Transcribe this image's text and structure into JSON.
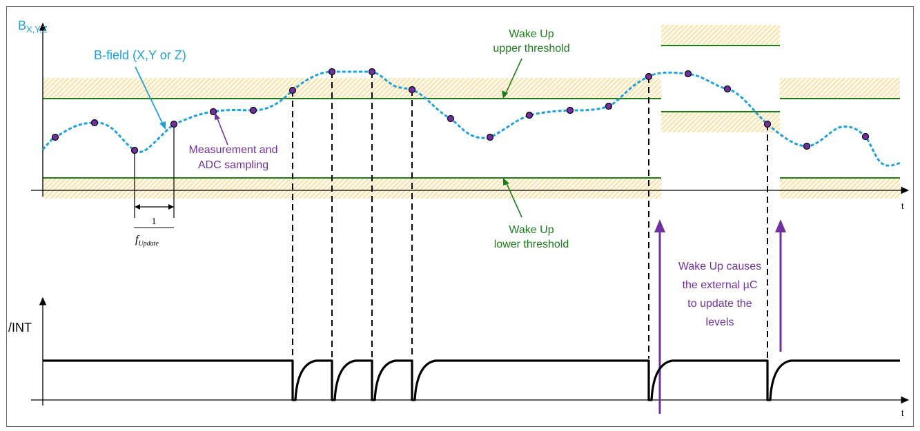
{
  "top_axis": {
    "y_label_main": "B",
    "y_label_sub": "X,Y,Z",
    "x_label": "t"
  },
  "bottom_axis": {
    "y_label": "/INT",
    "x_label": "t"
  },
  "labels": {
    "bfield": "B-field (X,Y or Z)",
    "upper_line1": "Wake Up",
    "upper_line2": "upper threshold",
    "lower_line1": "Wake Up",
    "lower_line2": "lower threshold",
    "measurement_line1": "Measurement and",
    "measurement_line2": "ADC sampling",
    "period_num": "1",
    "period_den_f": "f",
    "period_den_sub": "Update",
    "wake_line1": "Wake Up causes",
    "wake_line2": "the external µC",
    "wake_line3": "to update the",
    "wake_line4": "levels"
  },
  "colors": {
    "signal": "#1ea0dc",
    "threshold": "#1a7d1a",
    "annotation": "#7030a0",
    "hatch": "#f0c060",
    "sample_dot": "#7030a0"
  }
}
